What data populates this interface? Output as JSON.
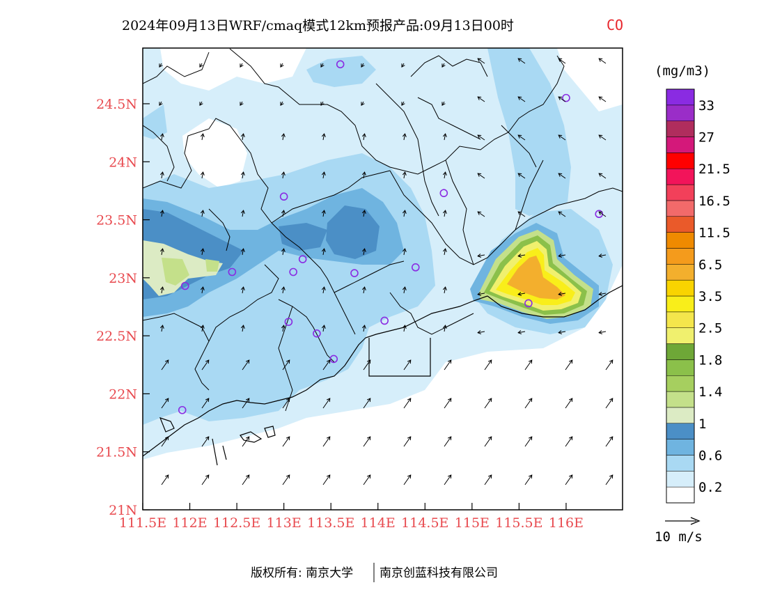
{
  "header": {
    "title": "2024年09月13日WRF/cmaq模式12km预报产品:09月13日00时",
    "species": "CO"
  },
  "map": {
    "lon_range": [
      111.5,
      116.6
    ],
    "lat_range": [
      21.0,
      24.98
    ],
    "x_ticks": [
      111.5,
      112,
      112.5,
      113,
      113.5,
      114,
      114.5,
      115,
      115.5,
      116
    ],
    "x_tick_labels": [
      "111.5E",
      "112E",
      "112.5E",
      "113E",
      "113.5E",
      "114E",
      "114.5E",
      "115E",
      "115.5E",
      "116E"
    ],
    "y_ticks": [
      21,
      21.5,
      22,
      22.5,
      23,
      23.5,
      24,
      24.5
    ],
    "y_tick_labels": [
      "21N",
      "21.5N",
      "22N",
      "22.5N",
      "23N",
      "23.5N",
      "24N",
      "24.5N"
    ]
  },
  "colorbar": {
    "unit": "(mg/m3)",
    "colors": [
      "#ffffff",
      "#d6eefa",
      "#a9d9f3",
      "#6fb4e0",
      "#4b8fc6",
      "#dcebc4",
      "#c4e08a",
      "#a6cf5f",
      "#8bc04a",
      "#6ea737",
      "#f0f06e",
      "#f4e64c",
      "#f9ee1a",
      "#f9d400",
      "#f3af2d",
      "#f49b1c",
      "#ef8a00",
      "#ea5a2a",
      "#f26a6a",
      "#f2405a",
      "#f2145a",
      "#ff0000",
      "#d4187a",
      "#b02d5d",
      "#9a2dc8",
      "#8a2be2"
    ],
    "labels": [
      "0.2",
      "0.6",
      "1",
      "1.4",
      "1.8",
      "2.5",
      "3.5",
      "6.5",
      "11.5",
      "16.5",
      "21.5",
      "27",
      "33"
    ]
  },
  "wind_legend": {
    "label": "10 m/s"
  },
  "stations": [
    {
      "lon": 113.6,
      "lat": 24.84
    },
    {
      "lon": 116.0,
      "lat": 24.55
    },
    {
      "lon": 113.0,
      "lat": 23.7
    },
    {
      "lon": 114.7,
      "lat": 23.73
    },
    {
      "lon": 116.35,
      "lat": 23.55
    },
    {
      "lon": 112.45,
      "lat": 23.05
    },
    {
      "lon": 113.1,
      "lat": 23.05
    },
    {
      "lon": 113.2,
      "lat": 23.16
    },
    {
      "lon": 113.75,
      "lat": 23.04
    },
    {
      "lon": 114.4,
      "lat": 23.09
    },
    {
      "lon": 111.95,
      "lat": 22.93
    },
    {
      "lon": 115.6,
      "lat": 22.78
    },
    {
      "lon": 113.05,
      "lat": 22.62
    },
    {
      "lon": 113.35,
      "lat": 22.52
    },
    {
      "lon": 114.07,
      "lat": 22.63
    },
    {
      "lon": 113.53,
      "lat": 22.3
    },
    {
      "lon": 111.92,
      "lat": 21.86
    }
  ],
  "footer": {
    "copyright": "版权所有: 南京大学",
    "company": "南京创蓝科技有限公司"
  }
}
